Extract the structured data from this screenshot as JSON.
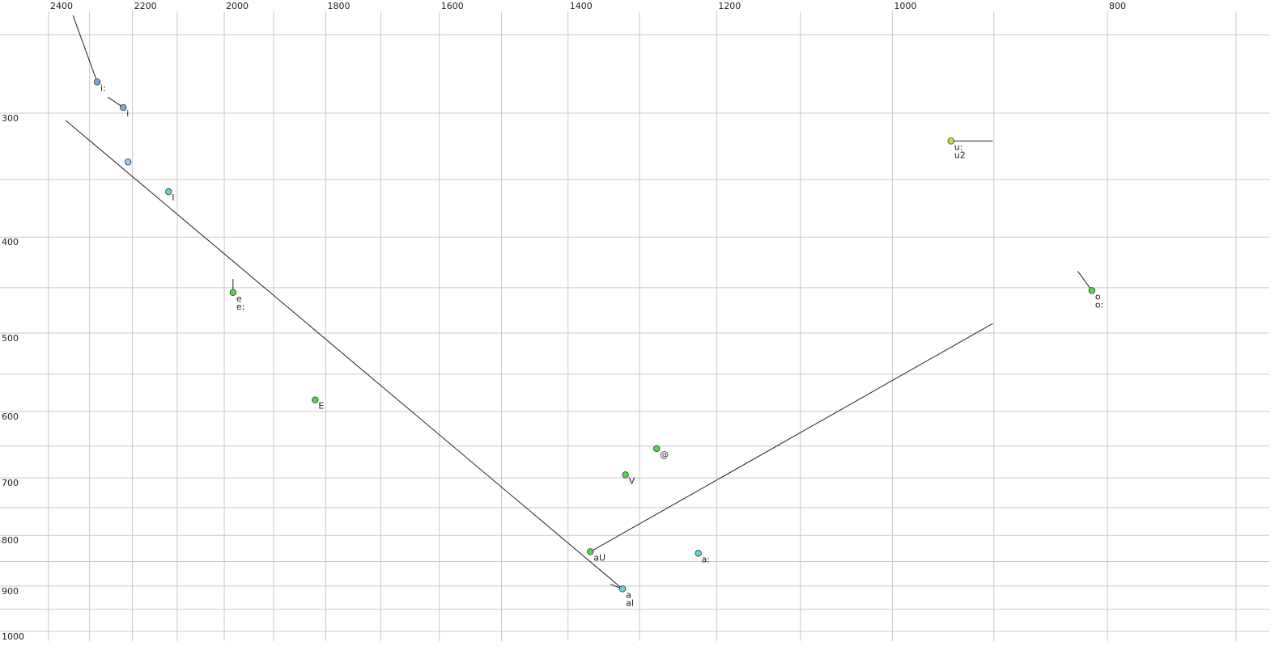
{
  "chart_data": {
    "type": "scatter",
    "log_x": true,
    "log_y": true,
    "x_reversed": true,
    "grid": true,
    "xlim": [
      2400,
      700
    ],
    "ylim": [
      250,
      1000
    ],
    "xticks": [
      2400,
      2200,
      2000,
      1800,
      1600,
      1400,
      1200,
      1000,
      800
    ],
    "xminor_ticks": [
      2300,
      2100,
      1900,
      1700,
      1500,
      1300,
      1100,
      900,
      700
    ],
    "yticks": [
      300,
      400,
      500,
      600,
      700,
      800,
      900,
      1000
    ],
    "yminor_ticks": [
      250,
      350,
      450,
      550,
      650,
      750,
      850,
      950
    ],
    "points": [
      {
        "x": 2282,
        "y": 279,
        "color": "#7aa7e0",
        "labels": [
          "i:"
        ]
      },
      {
        "x": 2221,
        "y": 296,
        "color": "#7aa7e0",
        "labels": [
          "i"
        ]
      },
      {
        "x": 2210,
        "y": 336,
        "color": "#9cc6f0",
        "labels": []
      },
      {
        "x": 2119,
        "y": 360,
        "color": "#5fd6d6",
        "labels": [
          "I"
        ]
      },
      {
        "x": 1982,
        "y": 455,
        "color": "#4ddb4d",
        "labels": [
          "e",
          "e:"
        ]
      },
      {
        "x": 1820,
        "y": 584,
        "color": "#4ddb4d",
        "labels": [
          "E"
        ]
      },
      {
        "x": 1277,
        "y": 654,
        "color": "#4ddb4d",
        "labels": [
          "@"
        ]
      },
      {
        "x": 1319,
        "y": 695,
        "color": "#4ddb4d",
        "labels": [
          "V"
        ]
      },
      {
        "x": 1368,
        "y": 831,
        "color": "#4ddb4d",
        "labels": [
          "aU"
        ]
      },
      {
        "x": 1223,
        "y": 834,
        "color": "#5fd6d6",
        "labels": [
          "a:"
        ]
      },
      {
        "x": 1323,
        "y": 906,
        "color": "#5fd6d6",
        "labels": [
          "a",
          "aI"
        ]
      },
      {
        "x": 941,
        "y": 320,
        "color": "#c7e03a",
        "labels": [
          "u:",
          "u2"
        ]
      },
      {
        "x": 813,
        "y": 453,
        "color": "#4ddb4d",
        "labels": [
          "o",
          "o:"
        ]
      }
    ],
    "segments": [
      {
        "x": [
          2358,
          1323
        ],
        "y": [
          305,
          906
        ]
      },
      {
        "x": [
          1368,
          901
        ],
        "y": [
          831,
          489
        ]
      },
      {
        "x": [
          2340,
          2282
        ],
        "y": [
          239,
          279
        ]
      },
      {
        "x": [
          2257,
          2221
        ],
        "y": [
          289,
          296
        ]
      },
      {
        "x": [
          1982,
          1982
        ],
        "y": [
          441,
          455
        ]
      },
      {
        "x": [
          941,
          901
        ],
        "y": [
          320,
          320
        ]
      },
      {
        "x": [
          825,
          813
        ],
        "y": [
          433,
          453
        ]
      },
      {
        "x": [
          1340,
          1323
        ],
        "y": [
          896,
          906
        ]
      }
    ]
  }
}
